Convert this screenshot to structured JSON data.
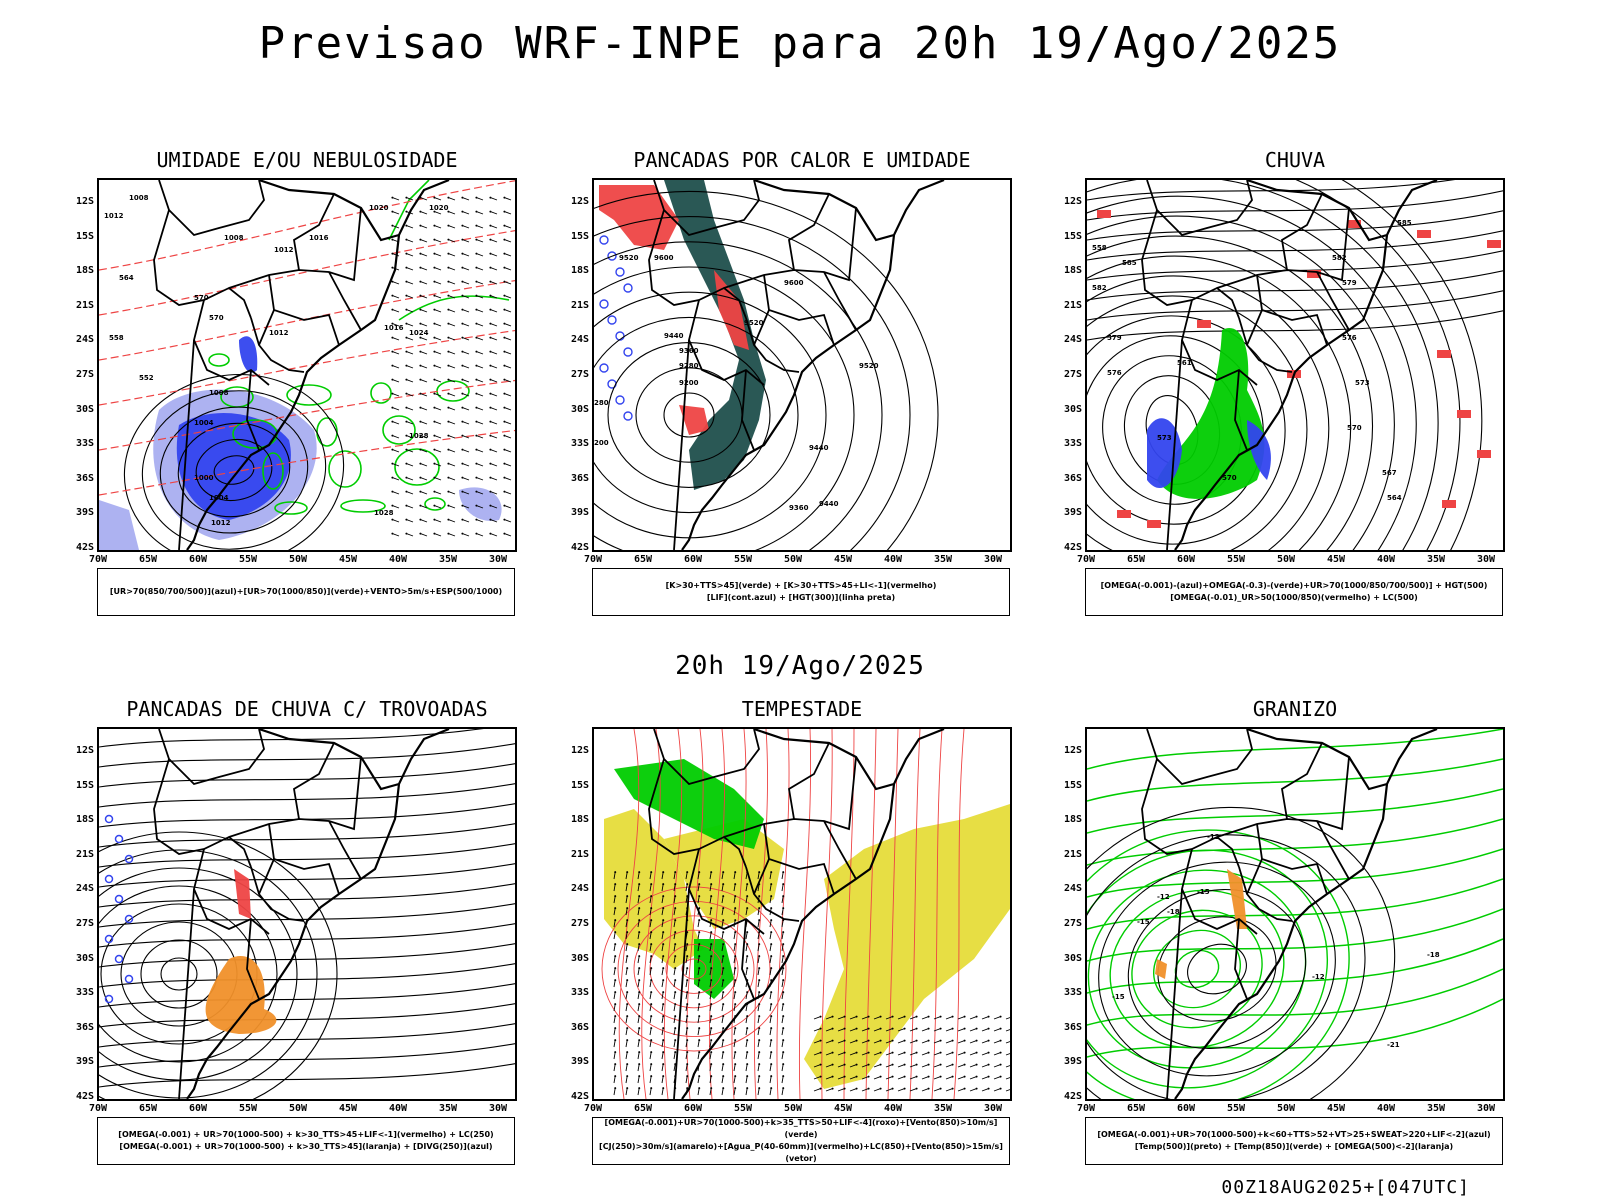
{
  "title": "Previsao WRF-INPE  para 20h 19/Ago/2025",
  "mid_time": "20h 19/Ago/2025",
  "footer": "00Z18AUG2025+[047UTC]",
  "lat_labels": [
    "12S",
    "15S",
    "18S",
    "21S",
    "24S",
    "27S",
    "30S",
    "33S",
    "36S",
    "39S",
    "42S"
  ],
  "lon_labels": [
    "70W",
    "65W",
    "60W",
    "55W",
    "50W",
    "45W",
    "40W",
    "35W",
    "30W"
  ],
  "colors": {
    "blue": "#3344ee",
    "light_blue": "#a9aef0",
    "green": "#00cc00",
    "red": "#ee4444",
    "dark_teal": "#1f4f4c",
    "orange": "#f0902a",
    "yellow": "#e6dc3a"
  },
  "panels": [
    {
      "title": "UMIDADE E/OU NEBULOSIDADE",
      "legend": [
        "[UR>70(850/700/500)](azul)+[UR>70(1000/850)](verde)+VENTO>5m/s+ESP(500/1000)"
      ],
      "contour_labels": [
        "1008",
        "1012",
        "1008",
        "1012",
        "1016",
        "1020",
        "1016",
        "1012",
        "1008",
        "1004",
        "1000",
        "1004",
        "1012",
        "1020",
        "1024",
        "1028",
        "1028",
        "570",
        "564",
        "558",
        "552",
        "570"
      ]
    },
    {
      "title": "PANCADAS POR CALOR E UMIDADE",
      "legend": [
        "[K>30+TTS>45](verde) + [K>30+TTS>45+LI<-1](vermelho)",
        "[LIF](cont.azul) + [HGT(300)](linha preta)"
      ],
      "contour_labels": [
        "9520",
        "9600",
        "9600",
        "9520",
        "9440",
        "9360",
        "9280",
        "9200",
        "9440",
        "9520",
        "9440",
        "9360",
        "280",
        "200"
      ]
    },
    {
      "title": "CHUVA",
      "legend": [
        "[OMEGA(-0.001)-(azul)+OMEGA(-0.3)-(verde)+UR>70(1000/850/700/500)] + HGT(500)",
        "[OMEGA(-0.01)_UR>50(1000/850)(vermelho) + LC(500)"
      ],
      "contour_labels": [
        "585",
        "582",
        "579",
        "576",
        "573",
        "570",
        "567",
        "564",
        "561",
        "558",
        "585",
        "582",
        "579",
        "576",
        "573",
        "570"
      ]
    },
    {
      "title": "PANCADAS DE CHUVA C/ TROVOADAS",
      "legend": [
        "[OMEGA(-0.001) + UR>70(1000-500) + k>30_TTS>45+LIF<-1](vermelho) + LC(250)",
        "[OMEGA(-0.001) + UR>70(1000-500) + k>30_TTS>45](laranja) + [DIVG(250)](azul)"
      ],
      "contour_labels": []
    },
    {
      "title": "TEMPESTADE",
      "legend": [
        "[OMEGA(-0.001)+UR>70(1000-500)+k>35_TTS>50+LIF<-4](roxo)+[Vento(850)>10m/s](verde)",
        "[CJ(250)>30m/s](amarelo)+[Agua_P(40-60mm)](vermelho)+LC(850)+[Vento(850)>15m/s](vetor)"
      ],
      "contour_labels": []
    },
    {
      "title": "GRANIZO",
      "legend": [
        "[OMEGA(-0.001)+UR>70(1000-500)+k<60+TTS>52+VT>25+SWEAT>220+LIF<-2](azul)",
        "[Temp(500)](preto) + [Temp(850)](verde) + [OMEGA(500)<-2](laranja)"
      ],
      "contour_labels": [
        "-12",
        "-15",
        "-18",
        "-12",
        "-15",
        "-18",
        "-21",
        "-12",
        "-15"
      ]
    }
  ]
}
